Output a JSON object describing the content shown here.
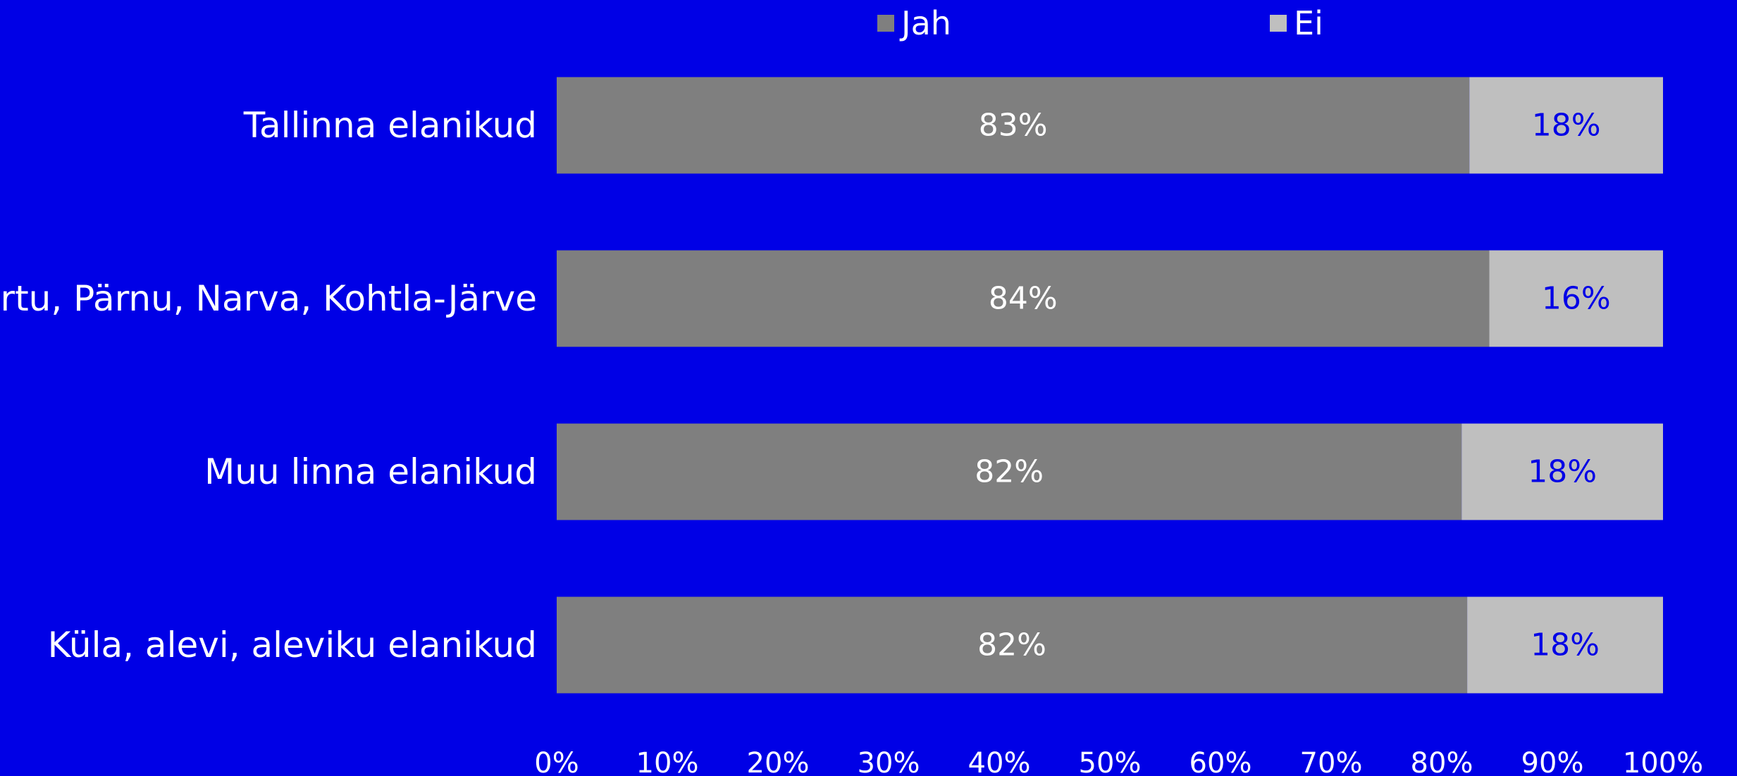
{
  "chart_data": {
    "type": "bar",
    "orientation": "horizontal",
    "stacked": true,
    "percent": true,
    "categories": [
      "Tallinna elanikud",
      "Tartu, Pärnu, Narva, Kohtla-Järve",
      "Muu linna elanikud",
      "Küla, alevi, aleviku elanikud"
    ],
    "series": [
      {
        "name": "Jah",
        "color": "#7F7F7F",
        "label_color": "#FFFFFF",
        "values": [
          82.5,
          84.3,
          81.8,
          82.3
        ],
        "data_labels": [
          "83%",
          "84%",
          "82%",
          "82%"
        ]
      },
      {
        "name": "Ei",
        "color": "#BFBFBF",
        "label_color": "#0000E6",
        "values": [
          17.5,
          15.7,
          18.2,
          17.7
        ],
        "data_labels": [
          "18%",
          "16%",
          "18%",
          "18%"
        ]
      }
    ],
    "xlim": [
      0,
      100
    ],
    "x_ticks": [
      "0%",
      "10%",
      "20%",
      "30%",
      "40%",
      "50%",
      "60%",
      "70%",
      "80%",
      "90%",
      "100%"
    ],
    "legend_position": "top",
    "grid": false,
    "background": "#0000E6"
  }
}
